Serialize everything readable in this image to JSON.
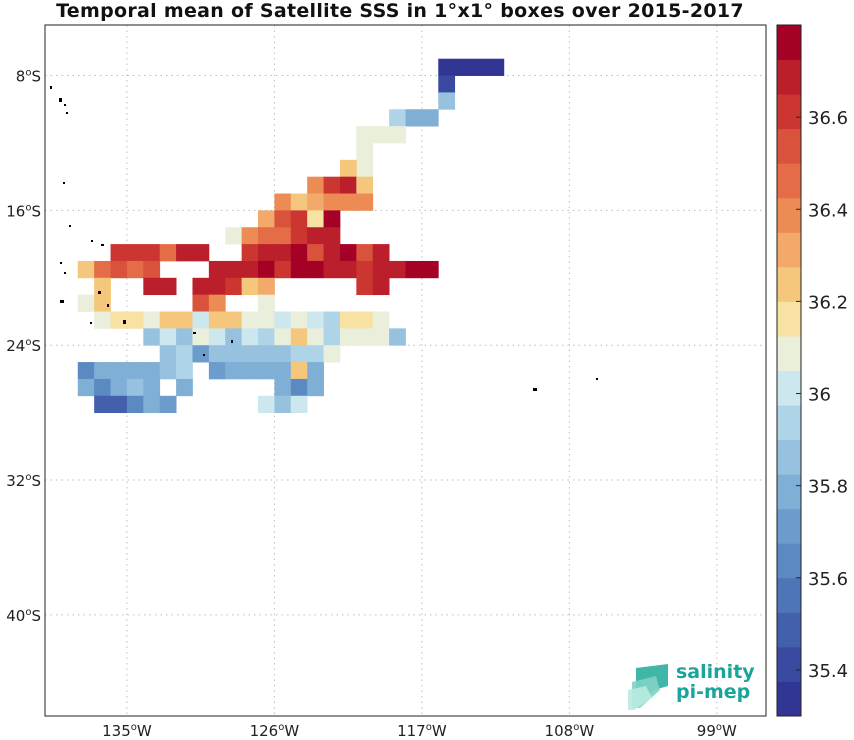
{
  "title": "Temporal mean of Satellite SSS in 1°x1° boxes over 2015-2017",
  "map": {
    "lon_range": [
      -140,
      -96
    ],
    "lat_range": [
      -46,
      -5
    ],
    "lon_ticks": [
      {
        "lon": -135,
        "label": "135°W"
      },
      {
        "lon": -126,
        "label": "126°W"
      },
      {
        "lon": -117,
        "label": "117°W"
      },
      {
        "lon": -108,
        "label": "108°W"
      },
      {
        "lon": -99,
        "label": "99°W"
      }
    ],
    "lat_ticks": [
      {
        "lat": -8,
        "label": "8°S"
      },
      {
        "lat": -16,
        "label": "16°S"
      },
      {
        "lat": -24,
        "label": "24°S"
      },
      {
        "lat": -32,
        "label": "32°S"
      },
      {
        "lat": -40,
        "label": "40°S"
      }
    ],
    "grid": "dotted"
  },
  "colorbar": {
    "min": 35.3,
    "max": 36.8,
    "n_levels": 20,
    "colors": [
      "#313695",
      "#3a4aa1",
      "#4360ad",
      "#4d75b8",
      "#5b89c1",
      "#6b9ccb",
      "#80afd5",
      "#97c2df",
      "#afd4e8",
      "#cde7ef",
      "#e9efdb",
      "#f7e2a3",
      "#f5c77c",
      "#f2a96a",
      "#ed8b55",
      "#e46d47",
      "#d9523b",
      "#cb3730",
      "#bb1f2b",
      "#a50026"
    ],
    "tick_labels": [
      {
        "value": 35.4,
        "label": "35.4"
      },
      {
        "value": 35.6,
        "label": "35.6"
      },
      {
        "value": 35.8,
        "label": "35.8"
      },
      {
        "value": 36.0,
        "label": "36"
      },
      {
        "value": 36.2,
        "label": "36.2"
      },
      {
        "value": 36.4,
        "label": "36.4"
      },
      {
        "value": 36.6,
        "label": "36.6"
      }
    ]
  },
  "sss_boxes": [
    {
      "lon": -115.5,
      "lat": -7.5,
      "v": 35.35
    },
    {
      "lon": -114.5,
      "lat": -7.5,
      "v": 35.35
    },
    {
      "lon": -113.5,
      "lat": -7.5,
      "v": 35.35
    },
    {
      "lon": -112.5,
      "lat": -7.5,
      "v": 35.35
    },
    {
      "lon": -115.5,
      "lat": -8.5,
      "v": 35.4
    },
    {
      "lon": -115.5,
      "lat": -9.5,
      "v": 35.85
    },
    {
      "lon": -118.5,
      "lat": -10.5,
      "v": 35.95
    },
    {
      "lon": -117.5,
      "lat": -10.5,
      "v": 35.8
    },
    {
      "lon": -116.5,
      "lat": -10.5,
      "v": 35.75
    },
    {
      "lon": -120.5,
      "lat": -11.5,
      "v": 36.05
    },
    {
      "lon": -119.5,
      "lat": -11.5,
      "v": 36.1
    },
    {
      "lon": -118.5,
      "lat": -11.5,
      "v": 36.05
    },
    {
      "lon": -120.5,
      "lat": -12.5,
      "v": 36.1
    },
    {
      "lon": -120.5,
      "lat": -13.5,
      "v": 36.05
    },
    {
      "lon": -121.5,
      "lat": -13.5,
      "v": 36.25
    },
    {
      "lon": -123.5,
      "lat": -14.5,
      "v": 36.4
    },
    {
      "lon": -122.5,
      "lat": -14.5,
      "v": 36.6
    },
    {
      "lon": -121.5,
      "lat": -14.5,
      "v": 36.65
    },
    {
      "lon": -120.5,
      "lat": -14.5,
      "v": 36.25
    },
    {
      "lon": -125.5,
      "lat": -15.5,
      "v": 36.4
    },
    {
      "lon": -124.5,
      "lat": -15.5,
      "v": 36.2
    },
    {
      "lon": -123.5,
      "lat": -15.5,
      "v": 36.3
    },
    {
      "lon": -122.5,
      "lat": -15.5,
      "v": 36.4
    },
    {
      "lon": -121.5,
      "lat": -15.5,
      "v": 36.4
    },
    {
      "lon": -120.5,
      "lat": -15.5,
      "v": 36.4
    },
    {
      "lon": -126.5,
      "lat": -16.5,
      "v": 36.3
    },
    {
      "lon": -125.5,
      "lat": -16.5,
      "v": 36.55
    },
    {
      "lon": -124.5,
      "lat": -16.5,
      "v": 36.6
    },
    {
      "lon": -123.5,
      "lat": -16.5,
      "v": 36.15
    },
    {
      "lon": -122.5,
      "lat": -16.5,
      "v": 36.75
    },
    {
      "lon": -128.5,
      "lat": -17.5,
      "v": 36.1
    },
    {
      "lon": -127.5,
      "lat": -17.5,
      "v": 36.4
    },
    {
      "lon": -126.5,
      "lat": -17.5,
      "v": 36.45
    },
    {
      "lon": -125.5,
      "lat": -17.5,
      "v": 36.45
    },
    {
      "lon": -124.5,
      "lat": -17.5,
      "v": 36.6
    },
    {
      "lon": -123.5,
      "lat": -17.5,
      "v": 36.7
    },
    {
      "lon": -122.5,
      "lat": -17.5,
      "v": 36.65
    },
    {
      "lon": -135.5,
      "lat": -18.5,
      "v": 36.6
    },
    {
      "lon": -134.5,
      "lat": -18.5,
      "v": 36.6
    },
    {
      "lon": -133.5,
      "lat": -18.5,
      "v": 36.6
    },
    {
      "lon": -132.5,
      "lat": -18.5,
      "v": 36.45
    },
    {
      "lon": -131.5,
      "lat": -18.5,
      "v": 36.65
    },
    {
      "lon": -130.5,
      "lat": -18.5,
      "v": 36.65
    },
    {
      "lon": -127.5,
      "lat": -18.5,
      "v": 36.6
    },
    {
      "lon": -126.5,
      "lat": -18.5,
      "v": 36.7
    },
    {
      "lon": -125.5,
      "lat": -18.5,
      "v": 36.65
    },
    {
      "lon": -124.5,
      "lat": -18.5,
      "v": 36.75
    },
    {
      "lon": -123.5,
      "lat": -18.5,
      "v": 36.55
    },
    {
      "lon": -122.5,
      "lat": -18.5,
      "v": 36.65
    },
    {
      "lon": -121.5,
      "lat": -18.5,
      "v": 36.75
    },
    {
      "lon": -120.5,
      "lat": -18.5,
      "v": 36.55
    },
    {
      "lon": -119.5,
      "lat": -18.5,
      "v": 36.65
    },
    {
      "lon": -137.5,
      "lat": -19.5,
      "v": 36.2
    },
    {
      "lon": -136.5,
      "lat": -19.5,
      "v": 36.45
    },
    {
      "lon": -135.5,
      "lat": -19.5,
      "v": 36.55
    },
    {
      "lon": -134.5,
      "lat": -19.5,
      "v": 36.45
    },
    {
      "lon": -133.5,
      "lat": -19.5,
      "v": 36.5
    },
    {
      "lon": -129.5,
      "lat": -19.5,
      "v": 36.65
    },
    {
      "lon": -128.5,
      "lat": -19.5,
      "v": 36.65
    },
    {
      "lon": -127.5,
      "lat": -19.5,
      "v": 36.65
    },
    {
      "lon": -126.5,
      "lat": -19.5,
      "v": 36.75
    },
    {
      "lon": -125.5,
      "lat": -19.5,
      "v": 36.6
    },
    {
      "lon": -124.5,
      "lat": -19.5,
      "v": 36.75
    },
    {
      "lon": -123.5,
      "lat": -19.5,
      "v": 36.75
    },
    {
      "lon": -122.5,
      "lat": -19.5,
      "v": 36.7
    },
    {
      "lon": -121.5,
      "lat": -19.5,
      "v": 36.7
    },
    {
      "lon": -120.5,
      "lat": -19.5,
      "v": 36.6
    },
    {
      "lon": -119.5,
      "lat": -19.5,
      "v": 36.7
    },
    {
      "lon": -118.5,
      "lat": -19.5,
      "v": 36.7
    },
    {
      "lon": -117.5,
      "lat": -19.5,
      "v": 36.75
    },
    {
      "lon": -116.5,
      "lat": -19.5,
      "v": 36.75
    },
    {
      "lon": -136.5,
      "lat": -20.5,
      "v": 36.25
    },
    {
      "lon": -133.5,
      "lat": -20.5,
      "v": 36.65
    },
    {
      "lon": -132.5,
      "lat": -20.5,
      "v": 36.7
    },
    {
      "lon": -130.5,
      "lat": -20.5,
      "v": 36.65
    },
    {
      "lon": -129.5,
      "lat": -20.5,
      "v": 36.7
    },
    {
      "lon": -128.5,
      "lat": -20.5,
      "v": 36.6
    },
    {
      "lon": -127.5,
      "lat": -20.5,
      "v": 36.25
    },
    {
      "lon": -126.5,
      "lat": -20.5,
      "v": 36.3
    },
    {
      "lon": -120.5,
      "lat": -20.5,
      "v": 36.6
    },
    {
      "lon": -119.5,
      "lat": -20.5,
      "v": 36.65
    },
    {
      "lon": -137.5,
      "lat": -21.5,
      "v": 36.1
    },
    {
      "lon": -136.5,
      "lat": -21.5,
      "v": 36.2
    },
    {
      "lon": -130.5,
      "lat": -21.5,
      "v": 36.55
    },
    {
      "lon": -129.5,
      "lat": -21.5,
      "v": 36.4
    },
    {
      "lon": -126.5,
      "lat": -21.5,
      "v": 36.05
    },
    {
      "lon": -136.5,
      "lat": -22.5,
      "v": 36.1
    },
    {
      "lon": -135.5,
      "lat": -22.5,
      "v": 36.15
    },
    {
      "lon": -134.5,
      "lat": -22.5,
      "v": 36.15
    },
    {
      "lon": -133.5,
      "lat": -22.5,
      "v": 36.1
    },
    {
      "lon": -132.5,
      "lat": -22.5,
      "v": 36.2
    },
    {
      "lon": -131.5,
      "lat": -22.5,
      "v": 36.2
    },
    {
      "lon": -130.5,
      "lat": -22.5,
      "v": 36.0
    },
    {
      "lon": -129.5,
      "lat": -22.5,
      "v": 36.2
    },
    {
      "lon": -128.5,
      "lat": -22.5,
      "v": 36.2
    },
    {
      "lon": -127.5,
      "lat": -22.5,
      "v": 36.1
    },
    {
      "lon": -126.5,
      "lat": -22.5,
      "v": 36.1
    },
    {
      "lon": -125.5,
      "lat": -22.5,
      "v": 36.0
    },
    {
      "lon": -124.5,
      "lat": -22.5,
      "v": 36.05
    },
    {
      "lon": -123.5,
      "lat": -22.5,
      "v": 36.0
    },
    {
      "lon": -122.5,
      "lat": -22.5,
      "v": 35.9
    },
    {
      "lon": -121.5,
      "lat": -22.5,
      "v": 36.15
    },
    {
      "lon": -120.5,
      "lat": -22.5,
      "v": 36.15
    },
    {
      "lon": -119.5,
      "lat": -22.5,
      "v": 36.05
    },
    {
      "lon": -133.5,
      "lat": -23.5,
      "v": 35.85
    },
    {
      "lon": -132.5,
      "lat": -23.5,
      "v": 36.0
    },
    {
      "lon": -131.5,
      "lat": -23.5,
      "v": 35.85
    },
    {
      "lon": -130.5,
      "lat": -23.5,
      "v": 36.05
    },
    {
      "lon": -129.5,
      "lat": -23.5,
      "v": 36.0
    },
    {
      "lon": -128.5,
      "lat": -23.5,
      "v": 35.85
    },
    {
      "lon": -127.5,
      "lat": -23.5,
      "v": 36.0
    },
    {
      "lon": -126.5,
      "lat": -23.5,
      "v": 35.95
    },
    {
      "lon": -125.5,
      "lat": -23.5,
      "v": 36.05
    },
    {
      "lon": -124.5,
      "lat": -23.5,
      "v": 36.2
    },
    {
      "lon": -123.5,
      "lat": -23.5,
      "v": 36.05
    },
    {
      "lon": -122.5,
      "lat": -23.5,
      "v": 35.9
    },
    {
      "lon": -121.5,
      "lat": -23.5,
      "v": 36.05
    },
    {
      "lon": -120.5,
      "lat": -23.5,
      "v": 36.1
    },
    {
      "lon": -119.5,
      "lat": -23.5,
      "v": 36.1
    },
    {
      "lon": -118.5,
      "lat": -23.5,
      "v": 35.85
    },
    {
      "lon": -132.5,
      "lat": -24.5,
      "v": 35.85
    },
    {
      "lon": -131.5,
      "lat": -24.5,
      "v": 35.9
    },
    {
      "lon": -130.5,
      "lat": -24.5,
      "v": 35.7
    },
    {
      "lon": -129.5,
      "lat": -24.5,
      "v": 35.85
    },
    {
      "lon": -128.5,
      "lat": -24.5,
      "v": 35.85
    },
    {
      "lon": -127.5,
      "lat": -24.5,
      "v": 35.85
    },
    {
      "lon": -126.5,
      "lat": -24.5,
      "v": 35.85
    },
    {
      "lon": -125.5,
      "lat": -24.5,
      "v": 35.85
    },
    {
      "lon": -124.5,
      "lat": -24.5,
      "v": 35.95
    },
    {
      "lon": -123.5,
      "lat": -24.5,
      "v": 35.95
    },
    {
      "lon": -122.5,
      "lat": -24.5,
      "v": 36.05
    },
    {
      "lon": -137.5,
      "lat": -25.5,
      "v": 35.6
    },
    {
      "lon": -136.5,
      "lat": -25.5,
      "v": 35.75
    },
    {
      "lon": -135.5,
      "lat": -25.5,
      "v": 35.8
    },
    {
      "lon": -134.5,
      "lat": -25.5,
      "v": 35.75
    },
    {
      "lon": -133.5,
      "lat": -25.5,
      "v": 35.75
    },
    {
      "lon": -132.5,
      "lat": -25.5,
      "v": 35.85
    },
    {
      "lon": -131.5,
      "lat": -25.5,
      "v": 35.95
    },
    {
      "lon": -129.5,
      "lat": -25.5,
      "v": 35.7
    },
    {
      "lon": -128.5,
      "lat": -25.5,
      "v": 35.8
    },
    {
      "lon": -127.5,
      "lat": -25.5,
      "v": 35.75
    },
    {
      "lon": -126.5,
      "lat": -25.5,
      "v": 35.75
    },
    {
      "lon": -125.5,
      "lat": -25.5,
      "v": 35.75
    },
    {
      "lon": -124.5,
      "lat": -25.5,
      "v": 36.2
    },
    {
      "lon": -123.5,
      "lat": -25.5,
      "v": 35.75
    },
    {
      "lon": -137.5,
      "lat": -26.5,
      "v": 35.75
    },
    {
      "lon": -136.5,
      "lat": -26.5,
      "v": 35.6
    },
    {
      "lon": -135.5,
      "lat": -26.5,
      "v": 35.75
    },
    {
      "lon": -134.5,
      "lat": -26.5,
      "v": 35.85
    },
    {
      "lon": -133.5,
      "lat": -26.5,
      "v": 35.8
    },
    {
      "lon": -131.5,
      "lat": -26.5,
      "v": 35.75
    },
    {
      "lon": -125.5,
      "lat": -26.5,
      "v": 35.75
    },
    {
      "lon": -124.5,
      "lat": -26.5,
      "v": 35.65
    },
    {
      "lon": -123.5,
      "lat": -26.5,
      "v": 35.75
    },
    {
      "lon": -136.5,
      "lat": -27.5,
      "v": 35.45
    },
    {
      "lon": -135.5,
      "lat": -27.5,
      "v": 35.5
    },
    {
      "lon": -134.5,
      "lat": -27.5,
      "v": 35.6
    },
    {
      "lon": -133.5,
      "lat": -27.5,
      "v": 35.75
    },
    {
      "lon": -132.5,
      "lat": -27.5,
      "v": 35.7
    },
    {
      "lon": -126.5,
      "lat": -27.5,
      "v": 36.0
    },
    {
      "lon": -125.5,
      "lat": -27.5,
      "v": 35.85
    },
    {
      "lon": -124.5,
      "lat": -27.5,
      "v": 36.0
    }
  ],
  "logo": {
    "line1": "salinity",
    "line2": "pi-mep"
  }
}
